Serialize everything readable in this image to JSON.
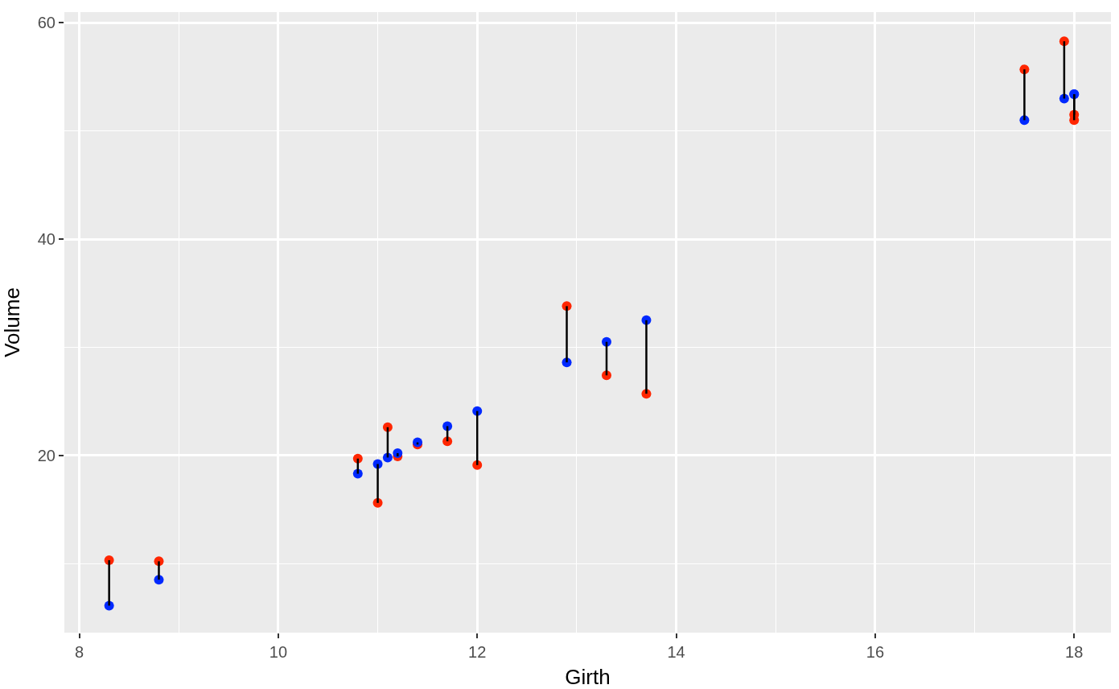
{
  "chart_data": {
    "type": "scatter",
    "xlabel": "Girth",
    "ylabel": "Volume",
    "xlim": [
      7.85,
      18.37
    ],
    "ylim": [
      3.6,
      61
    ],
    "xticks": [
      8,
      10,
      12,
      14,
      16,
      18
    ],
    "yticks": [
      20,
      40,
      60
    ],
    "grid": true,
    "marker": "circle",
    "series": [
      {
        "color": "#ff2600",
        "x": [
          8.3,
          8.8,
          10.8,
          11.0,
          11.1,
          11.2,
          11.4,
          11.7,
          12.0,
          12.9,
          13.3,
          13.7,
          17.5,
          17.9,
          18.0,
          18.0
        ],
        "values": [
          10.3,
          10.2,
          19.7,
          15.6,
          22.6,
          19.9,
          21.0,
          21.3,
          19.1,
          33.8,
          27.4,
          25.7,
          55.7,
          58.3,
          51.5,
          51.0
        ],
        "errors": [
          [
            6.1,
            10.3
          ],
          [
            8.5,
            10.2
          ],
          [
            18.3,
            19.7
          ],
          [
            15.6,
            19.2
          ],
          [
            19.8,
            22.6
          ],
          [
            19.9,
            20.2
          ],
          [
            21.0,
            21.2
          ],
          [
            21.3,
            22.7
          ],
          [
            19.1,
            24.1
          ],
          [
            28.6,
            33.8
          ],
          [
            27.4,
            30.5
          ],
          [
            25.7,
            32.5
          ],
          [
            51.0,
            55.7
          ],
          [
            53.0,
            58.3
          ],
          [
            51.5,
            53.4
          ],
          [
            51.0,
            53.4
          ]
        ]
      },
      {
        "color": "#0029ff",
        "x": [
          8.3,
          8.8,
          10.8,
          11.0,
          11.1,
          11.2,
          11.4,
          11.7,
          12.0,
          12.9,
          13.3,
          13.7,
          17.5,
          17.9,
          18.0,
          18.0
        ],
        "values": [
          6.1,
          8.5,
          18.3,
          19.2,
          19.8,
          20.2,
          21.2,
          22.7,
          24.1,
          28.6,
          30.5,
          32.5,
          51.0,
          53.0,
          53.4,
          53.4
        ]
      }
    ]
  }
}
